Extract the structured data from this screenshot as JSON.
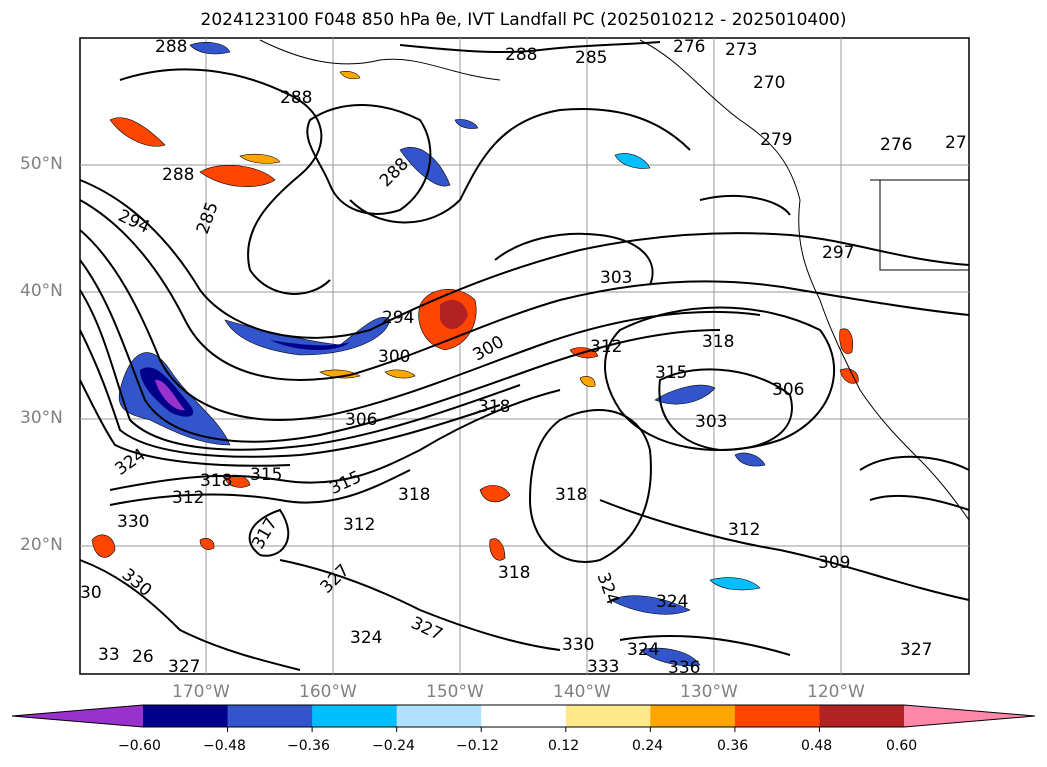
{
  "title": "2024123100 F048 850 hPa θe, IVT Landfall PC (2025010212 - 2025010400)",
  "lat_labels": [
    "50°N",
    "40°N",
    "30°N",
    "20°N"
  ],
  "lon_labels": [
    "170°W",
    "160°W",
    "150°W",
    "140°W",
    "130°W",
    "120°W"
  ],
  "colorbar": {
    "ticks": [
      "−0.60",
      "−0.48",
      "−0.36",
      "−0.24",
      "−0.12",
      "0.12",
      "0.24",
      "0.36",
      "0.48",
      "0.60"
    ],
    "colors": [
      "#9932cc",
      "#00008b",
      "#3355cc",
      "#00bfff",
      "#b0e2ff",
      "#ffffff",
      "#ffe88a",
      "#ffa500",
      "#ff4500",
      "#b22222",
      "#ff88aa"
    ]
  },
  "contour_labels": [
    {
      "text": "288"
    },
    {
      "text": "288"
    },
    {
      "text": "285"
    },
    {
      "text": "276"
    },
    {
      "text": "273"
    },
    {
      "text": "270"
    },
    {
      "text": "288"
    },
    {
      "text": "288"
    },
    {
      "text": "285"
    },
    {
      "text": "294"
    },
    {
      "text": "279"
    },
    {
      "text": "276"
    },
    {
      "text": "27"
    },
    {
      "text": "288"
    },
    {
      "text": "303"
    },
    {
      "text": "297"
    },
    {
      "text": "294"
    },
    {
      "text": "300"
    },
    {
      "text": "300"
    },
    {
      "text": "312"
    },
    {
      "text": "318"
    },
    {
      "text": "315"
    },
    {
      "text": "306"
    },
    {
      "text": "318"
    },
    {
      "text": "303"
    },
    {
      "text": "306"
    },
    {
      "text": "324"
    },
    {
      "text": "318"
    },
    {
      "text": "315"
    },
    {
      "text": "315"
    },
    {
      "text": "312"
    },
    {
      "text": "318"
    },
    {
      "text": "318"
    },
    {
      "text": "330"
    },
    {
      "text": "317"
    },
    {
      "text": "312"
    },
    {
      "text": "312"
    },
    {
      "text": "309"
    },
    {
      "text": "318"
    },
    {
      "text": "327"
    },
    {
      "text": "330"
    },
    {
      "text": "327"
    },
    {
      "text": "324"
    },
    {
      "text": "324"
    },
    {
      "text": "30"
    },
    {
      "text": "324"
    },
    {
      "text": "327"
    },
    {
      "text": "330"
    },
    {
      "text": "33"
    },
    {
      "text": "26"
    },
    {
      "text": "327"
    },
    {
      "text": "333"
    },
    {
      "text": "324"
    },
    {
      "text": "336"
    }
  ]
}
